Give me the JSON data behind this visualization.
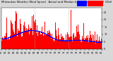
{
  "background_color": "#d8d8d8",
  "plot_background": "#ffffff",
  "bar_color": "#ff0000",
  "median_color": "#0000ff",
  "ylim": [
    0,
    28
  ],
  "yticks": [
    0,
    5,
    10,
    15,
    20,
    25
  ],
  "ytick_labels": [
    "0",
    "5",
    "10",
    "15",
    "20",
    "25"
  ],
  "n_points": 1440,
  "legend_colors": [
    "#0000ff",
    "#ff0000"
  ],
  "vline_color": "#aaaaaa",
  "vline_positions": [
    480,
    960
  ],
  "title_fontsize": 2.8,
  "tick_fontsize": 2.4,
  "title_text": "Milwaukee Weather Wind Speed   Actual and Median by Minute (24 Hours) (Old)"
}
